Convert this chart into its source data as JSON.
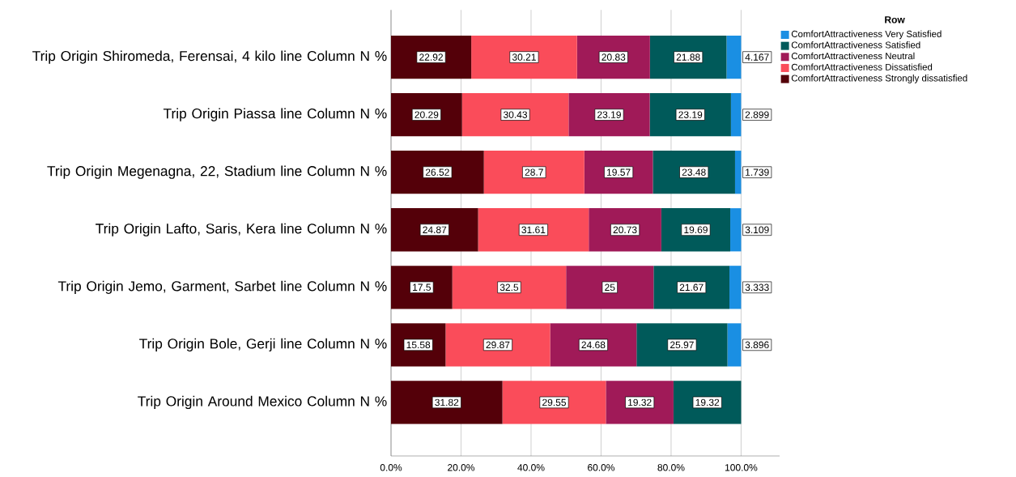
{
  "chart_data": {
    "type": "bar",
    "orientation": "horizontal",
    "stacked": true,
    "data_labels": true,
    "grid": "x",
    "legend": "top right",
    "legend_title": "Row",
    "categories": [
      "Trip Origin Shiromeda, Ferensai, 4 kilo line Column N %",
      "Trip Origin Piassa line Column N %",
      "Trip Origin Megenagna, 22, Stadium line Column N %",
      "Trip Origin Lafto, Saris, Kera line Column N %",
      "Trip Origin Jemo, Garment, Sarbet line Column N %",
      "Trip Origin Bole, Gerji line Column N %",
      "Trip Origin Around Mexico Column N %"
    ],
    "xlim": [
      0,
      111
    ],
    "xticks": [
      {
        "value": 0,
        "label": "0.0%"
      },
      {
        "value": 20,
        "label": "20.0%"
      },
      {
        "value": 40,
        "label": "40.0%"
      },
      {
        "value": 60,
        "label": "60.0%"
      },
      {
        "value": 80,
        "label": "80.0%"
      },
      {
        "value": 100,
        "label": "100.0%"
      }
    ],
    "series": [
      {
        "name": "ComfortAttractiveness Strongly dissatisfied",
        "color": "#540009",
        "values": [
          22.92,
          20.29,
          26.52,
          24.87,
          17.5,
          15.58,
          31.82
        ]
      },
      {
        "name": "ComfortAttractiveness Dissatisfied",
        "color": "#fa4c5a",
        "values": [
          30.21,
          30.43,
          28.7,
          31.61,
          32.5,
          29.87,
          29.55
        ]
      },
      {
        "name": "ComfortAttractiveness Neutral",
        "color": "#a01a58",
        "values": [
          20.83,
          23.19,
          19.57,
          20.73,
          25,
          24.68,
          19.32
        ]
      },
      {
        "name": "ComfortAttractiveness Satisfied",
        "color": "#005a5a",
        "values": [
          21.88,
          23.19,
          23.48,
          19.69,
          21.67,
          25.97,
          19.32
        ]
      },
      {
        "name": "ComfortAttractiveness Very Satisfied",
        "color": "#1a8fe3",
        "values": [
          4.167,
          2.899,
          1.739,
          3.109,
          3.333,
          3.896,
          null
        ]
      }
    ]
  }
}
